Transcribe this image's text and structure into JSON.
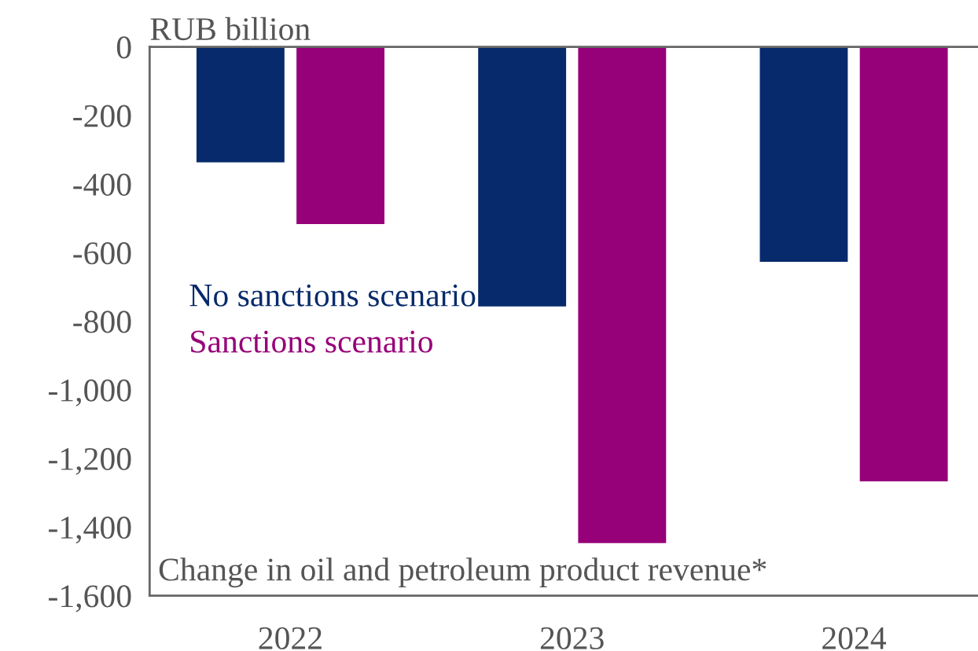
{
  "chart_data": {
    "type": "bar",
    "ylabel": "RUB billion",
    "categories": [
      "2022",
      "2023",
      "2024"
    ],
    "series": [
      {
        "name": "No sanctions scenario",
        "color": "#062a6b",
        "values": [
          -340,
          -760,
          -630
        ]
      },
      {
        "name": "Sanctions scenario",
        "color": "#960078",
        "values": [
          -520,
          -1450,
          -1270
        ]
      }
    ],
    "ylim": [
      -1600,
      0
    ],
    "yticks": [
      {
        "value": 0,
        "label": "0"
      },
      {
        "value": -200,
        "label": "-200"
      },
      {
        "value": -400,
        "label": "-400"
      },
      {
        "value": -600,
        "label": "-600"
      },
      {
        "value": -800,
        "label": "-800"
      },
      {
        "value": -1000,
        "label": "-1,000"
      },
      {
        "value": -1200,
        "label": "-1,200"
      },
      {
        "value": -1400,
        "label": "-1,400"
      },
      {
        "value": -1600,
        "label": "-1,600"
      }
    ],
    "annotations": [
      "Change in oil and petroleum product revenue*"
    ],
    "legend": "center left",
    "grid": false
  }
}
